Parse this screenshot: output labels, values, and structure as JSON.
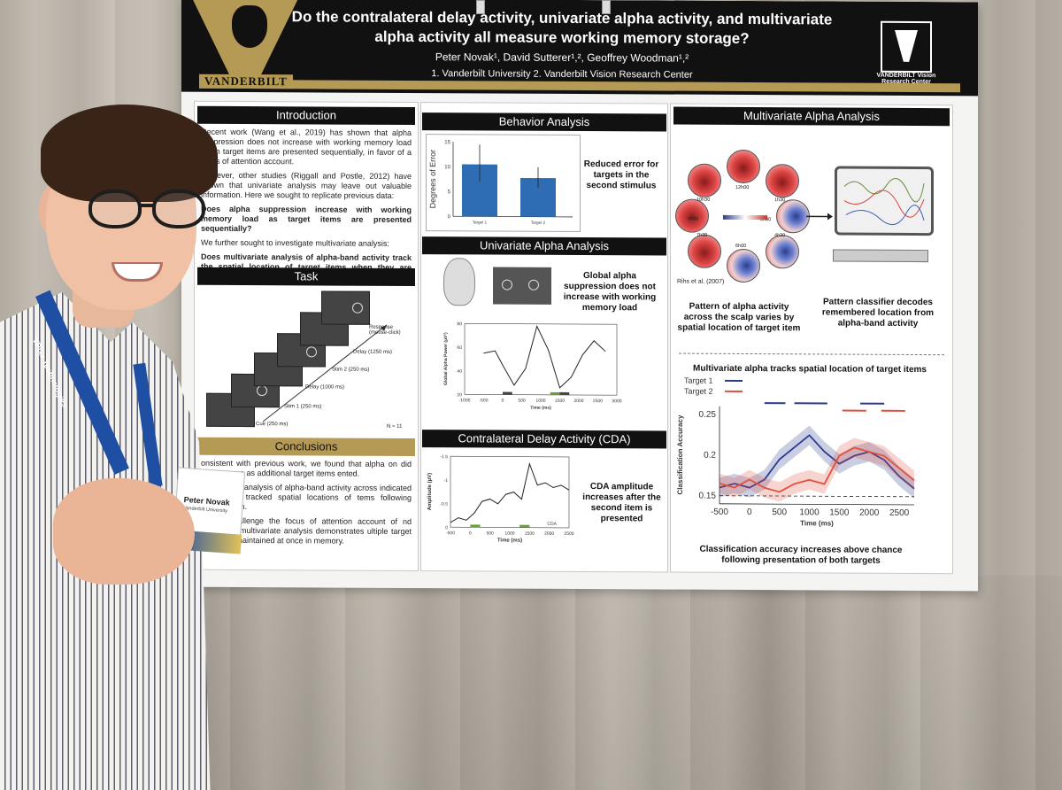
{
  "poster": {
    "title": "Do the contralateral delay activity, univariate alpha activity, and multivariate alpha activity all measure working memory storage?",
    "authors": "Peter Novak¹, David Sutterer¹,², Geoffrey Woodman¹,²",
    "affiliation": "1. Vanderbilt University 2. Vanderbilt Vision Research Center",
    "logo_left_text": "VANDERBILT",
    "logo_right_text": "VANDERBILT Vision Research Center"
  },
  "introduction": {
    "heading": "Introduction",
    "p1": "Recent work (Wang et al., 2019) has shown that alpha suppression does not increase with working memory load when target items are presented sequentially, in favor of a focus of attention account.",
    "p2": "However, other studies (Riggall and Postle, 2012) have shown that univariate analysis may leave out valuable information. Here we sought to replicate previous data:",
    "q1": "Does alpha suppression increase with working memory load as target items are presented sequentially?",
    "p3": "We further sought to investigate multivariate analysis:",
    "q2": "Does multivariate analysis of alpha-band activity track the spatial location of target items when they are presented sequentially?"
  },
  "task": {
    "heading": "Task",
    "labels": {
      "response": "Response (mouse-click)",
      "delay_long": "Delay (1250 ms)",
      "stim2": "Stim 2 (250 ms)",
      "delay_short": "Delay (1000 ms)",
      "stim1": "Stim 1 (250 ms)",
      "cue": "Cue (250 ms)"
    },
    "n": "N = 11"
  },
  "conclusions": {
    "heading": "Conclusions",
    "p1": "onsistent with previous work, we found that alpha on did not increase as additional target items ented.",
    "p2": "multivariate analysis of alpha-band activity across indicated that alpha tracked spatial locations of tems following presentation.",
    "p3": "results challenge the focus of attention account of nd activity as multivariate analysis demonstrates ultiple target items are maintained at once in memory."
  },
  "behavior": {
    "heading": "Behavior Analysis",
    "caption": "Reduced error for targets in the second stimulus",
    "chart_data": {
      "type": "bar",
      "categories": [
        "Target 1",
        "Target 2"
      ],
      "values": [
        10.5,
        7.8
      ],
      "errors": [
        [
          7,
          14.5
        ],
        [
          5.8,
          10
        ]
      ],
      "ylabel": "Degrees of Error",
      "ylim": [
        0,
        15
      ],
      "yticks": [
        0,
        5,
        10,
        15
      ],
      "color": "#2e6db4"
    }
  },
  "univariate": {
    "heading": "Univariate Alpha Analysis",
    "caption": "Global alpha suppression does not increase with working memory load",
    "chart_data": {
      "type": "line",
      "x": [
        -500,
        -200,
        0,
        300,
        600,
        900,
        1200,
        1500,
        1800,
        2100,
        2400,
        2700
      ],
      "series": [
        {
          "values": [
            55,
            57,
            45,
            28,
            42,
            78,
            58,
            26,
            35,
            54,
            66,
            57
          ]
        }
      ],
      "ylabel": "Global Alpha Power (µV²)",
      "xlabel": "Time (ms)",
      "xlim": [
        -1000,
        3000
      ],
      "ylim": [
        20,
        80
      ],
      "xticks": [
        -1000,
        -500,
        0,
        500,
        1000,
        1500,
        2000,
        2500,
        3000
      ],
      "yticks": [
        20,
        40,
        60,
        80
      ]
    }
  },
  "cda": {
    "heading": "Contralateral Delay Activity (CDA)",
    "caption": "CDA amplitude increases after the second item is presented",
    "chart_data": {
      "type": "line",
      "x": [
        -500,
        -300,
        -100,
        100,
        300,
        500,
        700,
        900,
        1100,
        1300,
        1500,
        1700,
        1900,
        2100,
        2300,
        2500
      ],
      "series": [
        {
          "name": "CDA",
          "values": [
            -0.1,
            -0.2,
            -0.15,
            -0.3,
            -0.55,
            -0.6,
            -0.5,
            -0.7,
            -0.75,
            -0.6,
            -1.35,
            -0.9,
            -0.95,
            -0.85,
            -0.9,
            -0.8
          ]
        }
      ],
      "ylabel": "Amplitude (µV)",
      "xlabel": "Time (ms)",
      "xlim": [
        -500,
        2500
      ],
      "ylim": [
        0,
        -1.5
      ],
      "xticks": [
        -500,
        0,
        500,
        1000,
        1500,
        2000,
        2500
      ],
      "yticks": [
        -1.5,
        -1.0,
        -0.5,
        0.0
      ]
    }
  },
  "multivariate": {
    "heading": "Multivariate Alpha Analysis",
    "scalp_labels": [
      "12h00",
      "10h30",
      "1h30",
      "9h00",
      "3h00",
      "7h30",
      "4h30",
      "6h00"
    ],
    "scalp_citation": "Rihs et al. (2007)",
    "caption_left": "Pattern of alpha activity across the scalp varies by spatial location of target item",
    "caption_right": "Pattern classifier decodes remembered location from alpha-band activity",
    "subheading": "Multivariate alpha tracks spatial location of target items",
    "bottom_caption": "Classification accuracy increases above chance following presentation of both targets",
    "chart_data": {
      "type": "line",
      "x": [
        -500,
        -250,
        0,
        250,
        500,
        750,
        1000,
        1250,
        1500,
        1750,
        2000,
        2250,
        2500,
        2750
      ],
      "series": [
        {
          "name": "Target 1",
          "color": "#2b3a8f",
          "values": [
            0.16,
            0.165,
            0.16,
            0.17,
            0.195,
            0.21,
            0.225,
            0.205,
            0.19,
            0.2,
            0.205,
            0.195,
            0.175,
            0.16
          ]
        },
        {
          "name": "Target 2",
          "color": "#e0523e",
          "values": [
            0.165,
            0.16,
            0.17,
            0.16,
            0.155,
            0.165,
            0.17,
            0.165,
            0.2,
            0.21,
            0.205,
            0.2,
            0.185,
            0.17
          ]
        }
      ],
      "chance": 0.15,
      "ylabel": "Classification Accuracy",
      "xlabel": "Time (ms)",
      "xlim": [
        -500,
        2750
      ],
      "ylim": [
        0.14,
        0.26
      ],
      "xticks": [
        -500,
        0,
        500,
        1000,
        1500,
        2000,
        2500
      ],
      "yticks": [
        0.15,
        0.2,
        0.25
      ],
      "legend": "top-left"
    }
  },
  "person": {
    "badge_name": "Peter Novak",
    "badge_org": "Vanderbilt University",
    "lanyard_text": "VPixx Technologies"
  }
}
